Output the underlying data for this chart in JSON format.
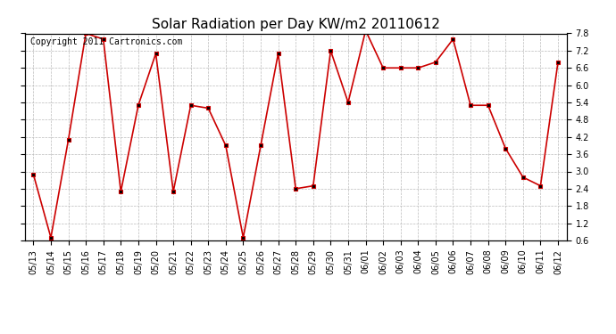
{
  "title": "Solar Radiation per Day KW/m2 20110612",
  "copyright": "Copyright 2011 Cartronics.com",
  "labels": [
    "05/13",
    "05/14",
    "05/15",
    "05/16",
    "05/17",
    "05/18",
    "05/19",
    "05/20",
    "05/21",
    "05/22",
    "05/23",
    "05/24",
    "05/25",
    "05/26",
    "05/27",
    "05/28",
    "05/29",
    "05/30",
    "05/31",
    "06/01",
    "06/02",
    "06/03",
    "06/04",
    "06/05",
    "06/06",
    "06/07",
    "06/08",
    "06/09",
    "06/10",
    "06/11",
    "06/12"
  ],
  "values": [
    2.9,
    0.7,
    4.1,
    7.8,
    7.6,
    2.3,
    5.3,
    7.1,
    2.3,
    5.3,
    5.2,
    3.9,
    0.7,
    3.9,
    7.1,
    2.4,
    2.5,
    7.2,
    5.4,
    7.9,
    6.6,
    6.6,
    6.6,
    6.8,
    7.6,
    5.3,
    5.3,
    3.8,
    2.8,
    2.5,
    6.8
  ],
  "line_color": "#cc0000",
  "marker_color": "#cc0000",
  "marker_face": "#000000",
  "bg_color": "#ffffff",
  "grid_color": "#bbbbbb",
  "ylim": [
    0.6,
    7.8
  ],
  "yticks": [
    0.6,
    1.2,
    1.8,
    2.4,
    3.0,
    3.6,
    4.2,
    4.8,
    5.4,
    6.0,
    6.6,
    7.2,
    7.8
  ],
  "title_fontsize": 11,
  "copyright_fontsize": 7,
  "tick_fontsize": 7
}
